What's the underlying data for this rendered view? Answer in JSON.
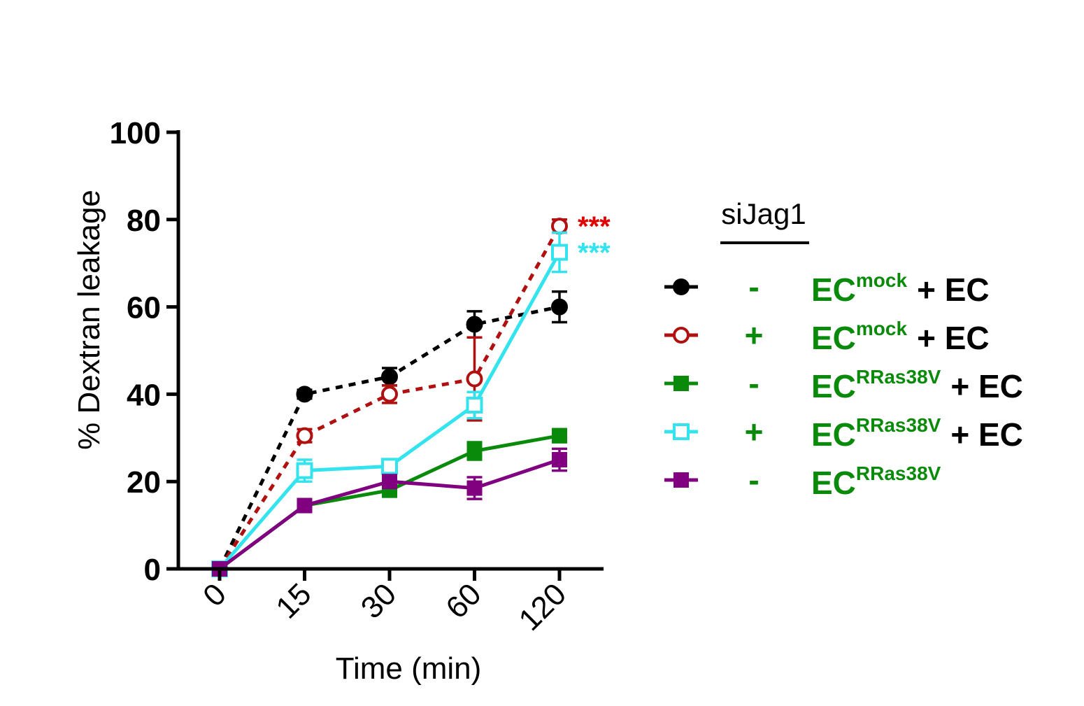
{
  "chart_data": {
    "type": "line",
    "xlabel": "Time (min)",
    "ylabel": "% Dextran leakage",
    "categories": [
      "0",
      "15",
      "30",
      "60",
      "120"
    ],
    "ylim": [
      0,
      100
    ],
    "yticks": [
      "0",
      "20",
      "40",
      "60",
      "80",
      "100"
    ],
    "grid": false,
    "legend_header": "siJag1",
    "legend_placement": "right",
    "series": [
      {
        "id": "s1",
        "values": [
          0,
          40,
          44,
          56,
          60
        ],
        "err": [
          0,
          1,
          2,
          3,
          3.5
        ],
        "color": "#000000",
        "marker": "circle-filled",
        "line": "dashed",
        "sijag1": "-",
        "label_main": "EC",
        "label_sup": "mock",
        "label_tail": "+ EC"
      },
      {
        "id": "s2",
        "values": [
          0,
          30.5,
          40,
          43.5,
          78.5
        ],
        "err": [
          0,
          1.5,
          2,
          9.5,
          1.5
        ],
        "color": "#b01010",
        "marker": "circle-open",
        "line": "dashed",
        "sijag1": "+",
        "label_main": "EC",
        "label_sup": "mock",
        "label_tail": "+ EC"
      },
      {
        "id": "s3",
        "values": [
          0,
          14.5,
          18,
          27,
          30.5
        ],
        "err": [
          0,
          1,
          1,
          2,
          1.5
        ],
        "color": "#0a8a0a",
        "marker": "square-filled",
        "line": "solid",
        "sijag1": "-",
        "label_main": "EC",
        "label_sup": "RRas38V",
        "label_tail": "+ EC"
      },
      {
        "id": "s4",
        "values": [
          0,
          22.5,
          23.5,
          37.5,
          72.5
        ],
        "err": [
          0,
          2.5,
          1.5,
          3,
          4.5
        ],
        "color": "#33e3ee",
        "marker": "square-open",
        "line": "solid",
        "sijag1": "+",
        "label_main": "EC",
        "label_sup": "RRas38V",
        "label_tail": "+ EC"
      },
      {
        "id": "s5",
        "values": [
          0,
          14.5,
          20,
          18.5,
          25
        ],
        "err": [
          0,
          1,
          1,
          2.5,
          2.5
        ],
        "color": "#800080",
        "marker": "square-filled",
        "line": "solid",
        "sijag1": "-",
        "label_main": "EC",
        "label_sup": "RRas38V",
        "label_tail": ""
      }
    ],
    "annotations": [
      {
        "text": "***",
        "series": "s2",
        "color": "#e00000"
      },
      {
        "text": "***",
        "series": "s4",
        "color": "#33e3ee"
      }
    ]
  }
}
